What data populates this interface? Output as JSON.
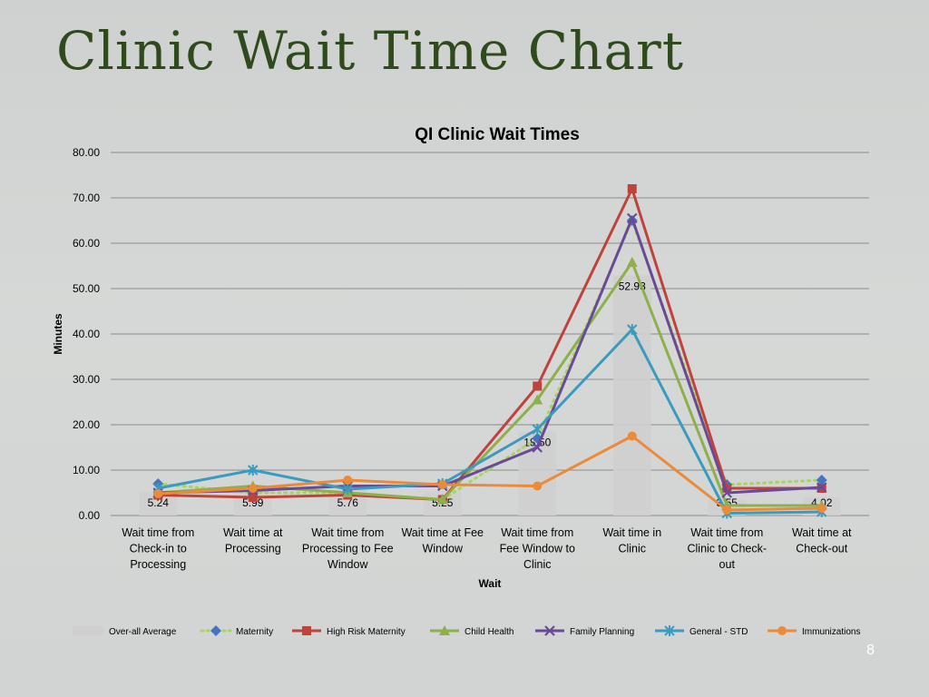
{
  "slide": {
    "title": "Clinic Wait Time Chart",
    "page_number": "8"
  },
  "colors": {
    "Over-all Average": "#cfcfcf",
    "Maternity": "#a6d65e",
    "Maternity_marker": "#4673c2",
    "High Risk Maternity": "#c0423c",
    "Child Health": "#8db04a",
    "Family Planning": "#6a4a96",
    "General - STD": "#3a9bbe",
    "Immunizations": "#ed8a3a"
  },
  "chart_data": {
    "type": "bar",
    "title": "QI Clinic Wait Times",
    "xlabel": "Wait",
    "ylabel": "Minutes",
    "ylim": [
      0,
      80
    ],
    "yticks": [
      "0.00",
      "10.00",
      "20.00",
      "30.00",
      "40.00",
      "50.00",
      "60.00",
      "70.00",
      "80.00"
    ],
    "categories": [
      [
        "Wait time from",
        "Check-in to",
        "Processing"
      ],
      [
        "Wait time at",
        "Processing"
      ],
      [
        "Wait time from",
        "Processing to Fee",
        "Window"
      ],
      [
        "Wait time at Fee",
        "Window"
      ],
      [
        "Wait time from",
        "Fee Window to",
        "Clinic"
      ],
      [
        "Wait time in",
        "Clinic"
      ],
      [
        "Wait time from",
        "Clinic to Check-",
        "out"
      ],
      [
        "Wait time at",
        "Check-out"
      ]
    ],
    "bar_series": {
      "name": "Over-all Average",
      "values": [
        5.24,
        5.99,
        5.76,
        5.25,
        18.5,
        52.93,
        3.55,
        4.02
      ],
      "labels": [
        "5.24",
        "5.99",
        "5.76",
        "5.25",
        "18.50",
        "52.93",
        "3.55",
        "4.02"
      ]
    },
    "line_series": [
      {
        "name": "Maternity",
        "style": "dotted",
        "marker": "diamond",
        "values": [
          7.0,
          5.0,
          5.0,
          3.5,
          17.0,
          65.0,
          6.8,
          7.8
        ]
      },
      {
        "name": "High Risk Maternity",
        "style": "solid",
        "marker": "square",
        "values": [
          4.5,
          4.0,
          4.5,
          3.5,
          28.5,
          72.0,
          6.0,
          6.0
        ]
      },
      {
        "name": "Child Health",
        "style": "solid",
        "marker": "triangle",
        "values": [
          5.0,
          6.5,
          5.0,
          3.5,
          25.5,
          55.8,
          2.2,
          2.2
        ]
      },
      {
        "name": "Family Planning",
        "style": "solid",
        "marker": "x",
        "values": [
          5.0,
          5.5,
          6.5,
          6.5,
          15.0,
          65.5,
          5.0,
          6.2
        ]
      },
      {
        "name": "General - STD",
        "style": "solid",
        "marker": "star",
        "values": [
          6.0,
          10.0,
          5.8,
          7.0,
          19.0,
          41.0,
          0.5,
          0.8
        ]
      },
      {
        "name": "Immunizations",
        "style": "solid",
        "marker": "circle",
        "values": [
          4.8,
          6.0,
          7.8,
          6.8,
          6.5,
          17.5,
          1.2,
          1.6
        ]
      }
    ],
    "legend": [
      "Over-all Average",
      "Maternity",
      "High Risk Maternity",
      "Child Health",
      "Family Planning",
      "General - STD",
      "Immunizations"
    ],
    "legend_position": "bottom",
    "grid": true
  }
}
